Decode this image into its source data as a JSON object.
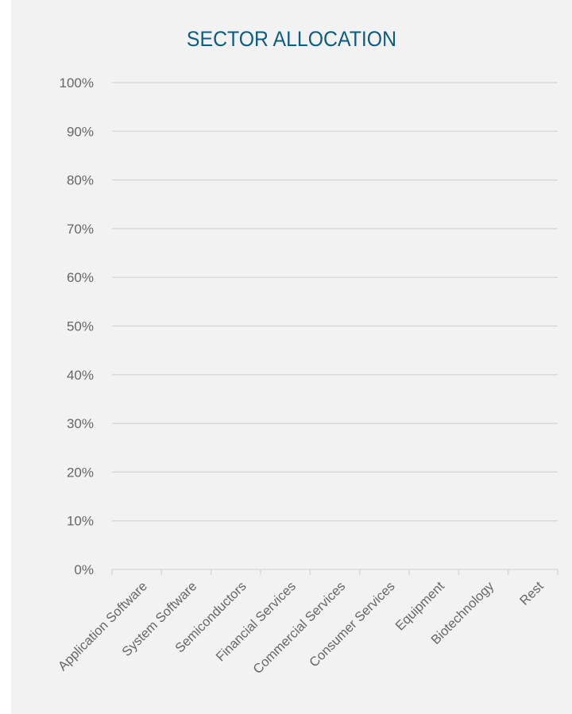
{
  "colors": {
    "title": "#0d5c80",
    "grid": "#d9d9d9",
    "axis_text": "#666666",
    "background": "#f2f2f2"
  },
  "chart_data": {
    "type": "bar",
    "title": "SECTOR ALLOCATION",
    "xlabel": "",
    "ylabel": "",
    "categories": [
      "Application Software",
      "System Software",
      "Semiconductors",
      "Financial Services",
      "Commercial Services",
      "Consumer Services",
      "Equipment",
      "Biotechnology",
      "Rest"
    ],
    "values": [
      0,
      0,
      0,
      0,
      0,
      0,
      0,
      0,
      0
    ],
    "ylim": [
      0,
      100
    ],
    "yticks": [
      "0%",
      "10%",
      "20%",
      "30%",
      "40%",
      "50%",
      "60%",
      "70%",
      "80%",
      "90%",
      "100%"
    ],
    "grid": true,
    "legend": "none"
  }
}
